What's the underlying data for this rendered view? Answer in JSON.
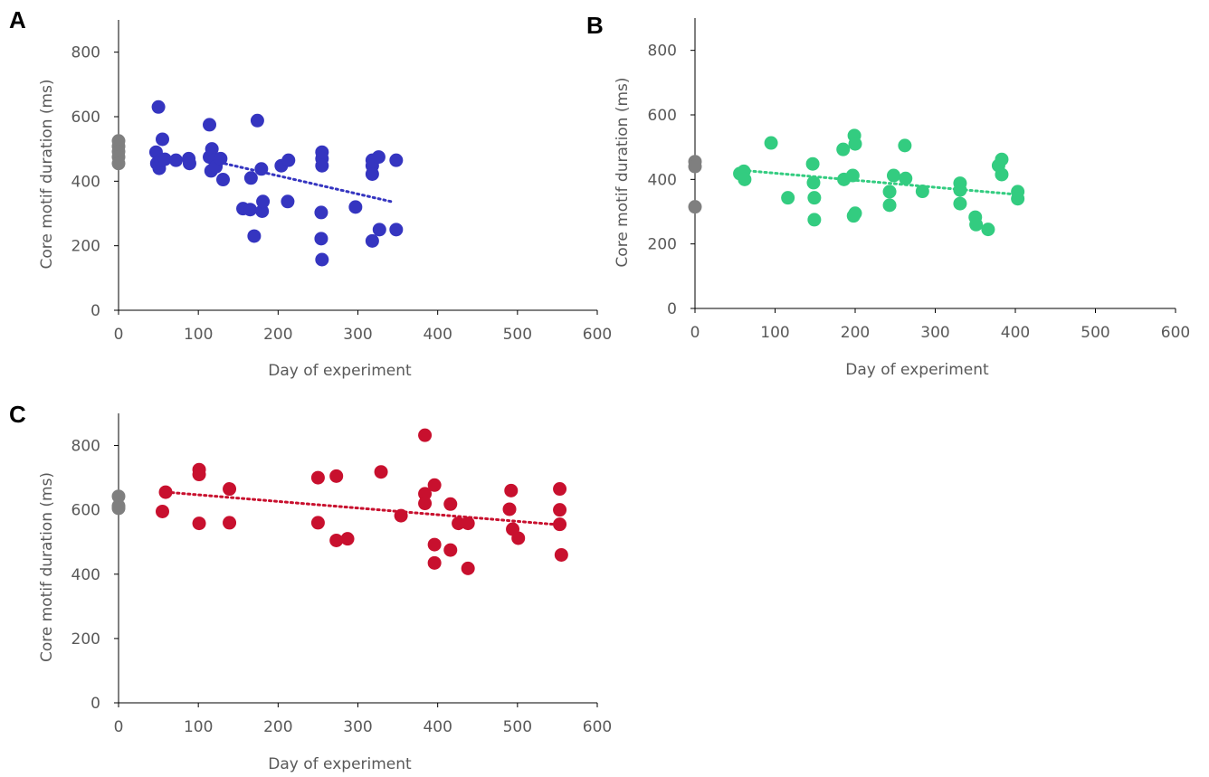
{
  "chart_data": [
    {
      "panel": "A",
      "type": "scatter",
      "xlabel": "Day of experiment",
      "ylabel": "Core motif duration (ms)",
      "xlim": [
        0,
        600
      ],
      "ylim": [
        0,
        900
      ],
      "xticks": [
        "0",
        "100",
        "200",
        "300",
        "400",
        "500",
        "600"
      ],
      "yticks": [
        "0",
        "200",
        "400",
        "600",
        "800"
      ],
      "point_color": "#3535c0",
      "baseline_color": "#7f7f7f",
      "baseline_y": [
        525,
        508,
        492,
        475,
        455
      ],
      "points": [
        [
          47,
          490
        ],
        [
          48,
          455
        ],
        [
          50,
          630
        ],
        [
          51,
          440
        ],
        [
          53,
          465
        ],
        [
          55,
          530
        ],
        [
          58,
          468
        ],
        [
          72,
          465
        ],
        [
          88,
          470
        ],
        [
          89,
          455
        ],
        [
          114,
          575
        ],
        [
          114,
          475
        ],
        [
          116,
          432
        ],
        [
          117,
          500
        ],
        [
          120,
          465
        ],
        [
          122,
          445
        ],
        [
          128,
          470
        ],
        [
          131,
          405
        ],
        [
          156,
          315
        ],
        [
          165,
          312
        ],
        [
          166,
          410
        ],
        [
          170,
          230
        ],
        [
          174,
          588
        ],
        [
          179,
          438
        ],
        [
          180,
          307
        ],
        [
          181,
          337
        ],
        [
          204,
          448
        ],
        [
          212,
          337
        ],
        [
          213,
          465
        ],
        [
          254,
          303
        ],
        [
          254,
          222
        ],
        [
          255,
          157
        ],
        [
          255,
          490
        ],
        [
          255,
          470
        ],
        [
          255,
          448
        ],
        [
          297,
          320
        ],
        [
          318,
          465
        ],
        [
          318,
          215
        ],
        [
          318,
          448
        ],
        [
          318,
          422
        ],
        [
          326,
          475
        ],
        [
          327,
          250
        ],
        [
          348,
          250
        ],
        [
          348,
          465
        ]
      ],
      "trendline": {
        "x": [
          120,
          345
        ],
        "y": [
          462,
          335
        ]
      }
    },
    {
      "panel": "B",
      "type": "scatter",
      "xlabel": "Day of experiment",
      "ylabel": "Core motif duration (ms)",
      "xlim": [
        0,
        600
      ],
      "ylim": [
        0,
        900
      ],
      "xticks": [
        "0",
        "100",
        "200",
        "300",
        "400",
        "500",
        "600"
      ],
      "yticks": [
        "0",
        "200",
        "400",
        "600",
        "800"
      ],
      "point_color": "#33cc80",
      "baseline_color": "#7f7f7f",
      "baseline_y": [
        455,
        440,
        315
      ],
      "points": [
        [
          56,
          418
        ],
        [
          61,
          425
        ],
        [
          62,
          400
        ],
        [
          95,
          513
        ],
        [
          116,
          343
        ],
        [
          147,
          448
        ],
        [
          148,
          390
        ],
        [
          149,
          343
        ],
        [
          149,
          275
        ],
        [
          185,
          493
        ],
        [
          186,
          400
        ],
        [
          197,
          412
        ],
        [
          199,
          536
        ],
        [
          200,
          510
        ],
        [
          198,
          287
        ],
        [
          200,
          295
        ],
        [
          243,
          362
        ],
        [
          243,
          320
        ],
        [
          248,
          412
        ],
        [
          262,
          505
        ],
        [
          263,
          403
        ],
        [
          284,
          363
        ],
        [
          331,
          388
        ],
        [
          331,
          367
        ],
        [
          331,
          325
        ],
        [
          350,
          283
        ],
        [
          351,
          260
        ],
        [
          366,
          245
        ],
        [
          379,
          443
        ],
        [
          383,
          462
        ],
        [
          383,
          415
        ],
        [
          403,
          362
        ],
        [
          403,
          340
        ]
      ],
      "trendline": {
        "x": [
          60,
          403
        ],
        "y": [
          428,
          353
        ]
      }
    },
    {
      "panel": "C",
      "type": "scatter",
      "xlabel": "Day of experiment",
      "ylabel": "Core motif duration (ms)",
      "xlim": [
        0,
        600
      ],
      "ylim": [
        0,
        900
      ],
      "xticks": [
        "0",
        "100",
        "200",
        "300",
        "400",
        "500",
        "600"
      ],
      "yticks": [
        "0",
        "200",
        "400",
        "600",
        "800"
      ],
      "point_color": "#c8102e",
      "baseline_color": "#7f7f7f",
      "baseline_y": [
        642,
        612,
        605
      ],
      "points": [
        [
          55,
          595
        ],
        [
          59,
          655
        ],
        [
          101,
          725
        ],
        [
          101,
          710
        ],
        [
          101,
          558
        ],
        [
          139,
          665
        ],
        [
          139,
          560
        ],
        [
          250,
          700
        ],
        [
          250,
          560
        ],
        [
          273,
          705
        ],
        [
          273,
          505
        ],
        [
          287,
          510
        ],
        [
          329,
          718
        ],
        [
          354,
          582
        ],
        [
          384,
          832
        ],
        [
          384,
          650
        ],
        [
          384,
          620
        ],
        [
          396,
          677
        ],
        [
          396,
          492
        ],
        [
          396,
          435
        ],
        [
          416,
          618
        ],
        [
          416,
          475
        ],
        [
          426,
          558
        ],
        [
          438,
          558
        ],
        [
          438,
          418
        ],
        [
          490,
          602
        ],
        [
          492,
          660
        ],
        [
          494,
          540
        ],
        [
          501,
          512
        ],
        [
          553,
          665
        ],
        [
          553,
          600
        ],
        [
          553,
          555
        ],
        [
          555,
          460
        ]
      ],
      "trendline": {
        "x": [
          60,
          555
        ],
        "y": [
          655,
          553
        ]
      }
    }
  ]
}
